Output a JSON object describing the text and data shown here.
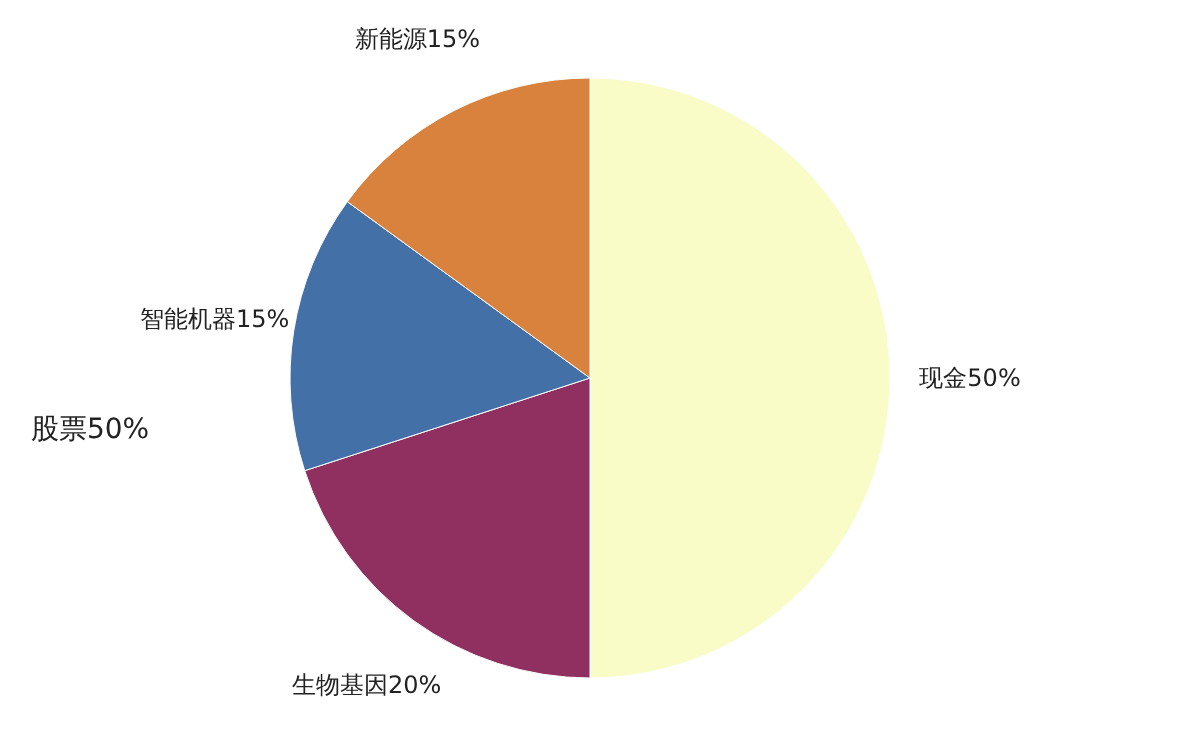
{
  "chart_data": {
    "type": "pie",
    "categories": [
      "现金",
      "生物基因",
      "智能机器",
      "新能源"
    ],
    "values": [
      50,
      20,
      15,
      15
    ],
    "value_labels": [
      "50%",
      "20%",
      "15%",
      "15%"
    ],
    "colors": [
      "#fafcc8",
      "#8f3060",
      "#4470a8",
      "#d9823e"
    ],
    "annotations": [
      "股票50%"
    ]
  }
}
